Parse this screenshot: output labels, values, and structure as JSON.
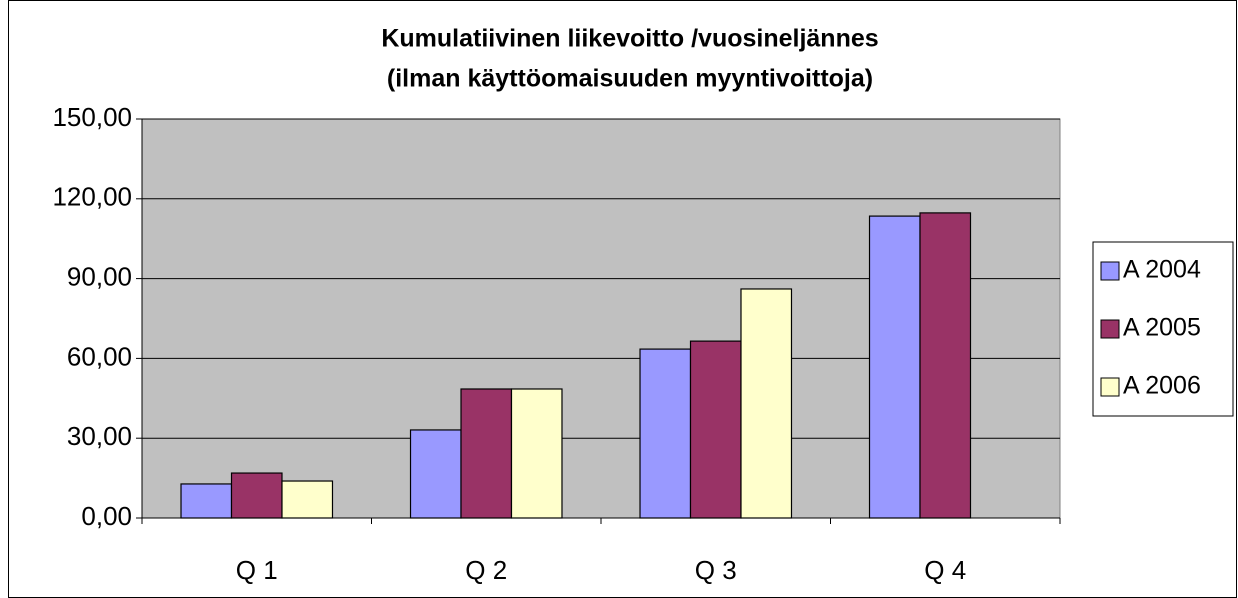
{
  "chart_data": {
    "type": "bar",
    "title": "Kumulatiivinen liikevoitto /vuosineljännes",
    "subtitle": "(ilman käyttöomaisuuden myyntivoittoja)",
    "categories": [
      "Q 1",
      "Q 2",
      "Q 3",
      "Q 4"
    ],
    "series": [
      {
        "name": "A 2004",
        "color": "#9999ff",
        "values": [
          12.8,
          33.1,
          63.5,
          113.5
        ]
      },
      {
        "name": "A 2005",
        "color": "#993366",
        "values": [
          16.9,
          48.5,
          66.5,
          114.7
        ]
      },
      {
        "name": "A 2006",
        "color": "#ffffcc",
        "values": [
          13.9,
          48.5,
          86.1,
          null
        ]
      }
    ],
    "ylim": [
      0,
      150
    ],
    "yticks": [
      {
        "value": 0,
        "label": "0,00"
      },
      {
        "value": 30,
        "label": "30,00"
      },
      {
        "value": 60,
        "label": "60,00"
      },
      {
        "value": 90,
        "label": "90,00"
      },
      {
        "value": 120,
        "label": "120,00"
      },
      {
        "value": 150,
        "label": "150,00"
      }
    ],
    "grid": true,
    "legend": "right",
    "plot_background": "#c0c0c0"
  }
}
